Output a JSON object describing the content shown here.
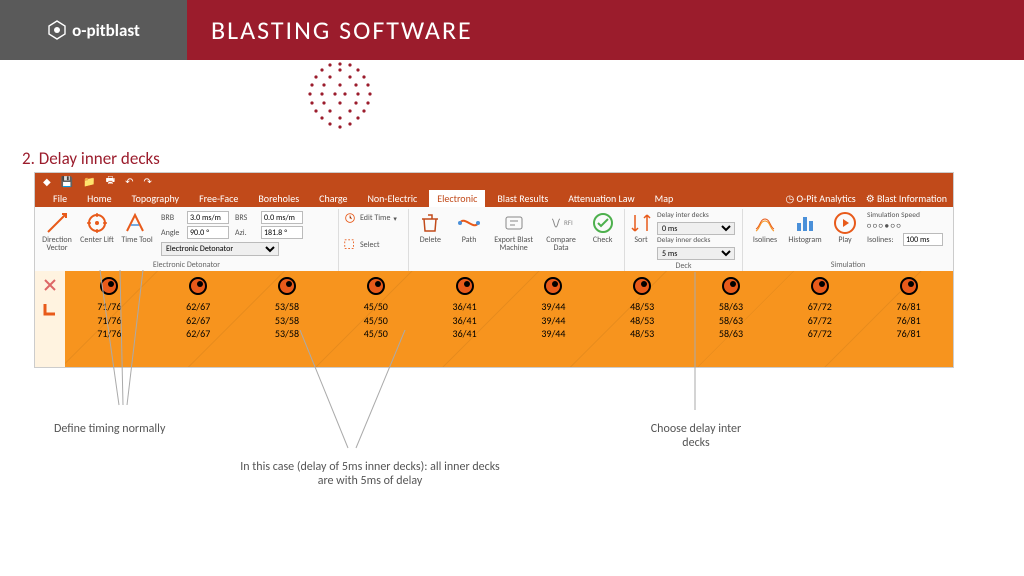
{
  "header": {
    "brand": "o-pitblast",
    "title": "BLASTING SOFTWARE"
  },
  "section_title": "2. Delay inner decks",
  "menu": {
    "tabs": [
      "File",
      "Home",
      "Topography",
      "Free-Face",
      "Boreholes",
      "Charge",
      "Non-Electric",
      "Electronic",
      "Blast Results",
      "Attenuation Law",
      "Map"
    ],
    "active": "Electronic",
    "right": {
      "analytics": "O-Pit Analytics",
      "info": "Blast Information"
    }
  },
  "ribbon": {
    "timing": {
      "direction": "Direction Vector",
      "center": "Center Lift",
      "time": "Time Tool"
    },
    "params": {
      "brb": "3.0 ms/m",
      "angle": "90.0 º",
      "brs": "0.0 ms/m",
      "azi": "181.8 º",
      "detonator": "Electronic Detonator"
    },
    "group1_label": "Electronic Detonator",
    "edit": {
      "edit_time": "Edit Time",
      "select": "Select"
    },
    "tools": {
      "delete": "Delete",
      "path": "Path",
      "export": "Export Blast Machine",
      "compare": "Compare Data",
      "check": "Check"
    },
    "deck": {
      "sort": "Sort",
      "inter_label": "Delay inter decks",
      "inter_value": "0 ms",
      "inner_label": "Delay inner decks",
      "inner_value": "5 ms",
      "group_label": "Deck"
    },
    "sim": {
      "isolines": "Isolines",
      "histogram": "Histogram",
      "play": "Play",
      "speed_label": "Simulation Speed",
      "iso_label": "Isolines:",
      "iso_value": "100 ms",
      "group_label": "Simulation"
    }
  },
  "grid": {
    "columns": [
      {
        "vals": [
          "71/76",
          "71/76",
          "71/76"
        ]
      },
      {
        "vals": [
          "62/67",
          "62/67",
          "62/67"
        ]
      },
      {
        "vals": [
          "53/58",
          "53/58",
          "53/58"
        ]
      },
      {
        "vals": [
          "45/50",
          "45/50",
          "45/50"
        ]
      },
      {
        "vals": [
          "36/41",
          "36/41",
          "36/41"
        ]
      },
      {
        "vals": [
          "39/44",
          "39/44",
          "39/44"
        ]
      },
      {
        "vals": [
          "48/53",
          "48/53",
          "48/53"
        ]
      },
      {
        "vals": [
          "58/63",
          "58/63",
          "58/63"
        ]
      },
      {
        "vals": [
          "67/72",
          "67/72",
          "67/72"
        ]
      },
      {
        "vals": [
          "76/81",
          "76/81",
          "76/81"
        ]
      }
    ]
  },
  "annotations": {
    "a1": "Define timing normally",
    "a2": "In this case (delay of 5ms inner decks): all inner decks are with 5ms of delay",
    "a3": "Choose delay inter decks"
  },
  "colors": {
    "primary": "#9b1c2c",
    "ribbon_orange": "#c14a1a",
    "grid_orange": "#f7941e",
    "hole": "#e85a1a"
  }
}
